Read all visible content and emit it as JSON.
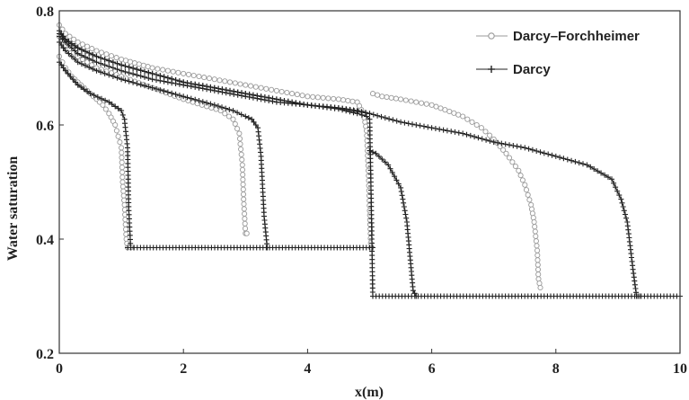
{
  "chart_data": {
    "type": "line",
    "title": "",
    "xlabel": "x(m)",
    "ylabel": "Water saturation",
    "xlim": [
      0,
      10
    ],
    "ylim": [
      0.2,
      0.8
    ],
    "xticks": [
      "0",
      "2",
      "4",
      "6",
      "8",
      "10"
    ],
    "yticks": [
      "0.2",
      "0.4",
      "0.6",
      "0.8"
    ],
    "xtick_values": [
      0,
      2,
      4,
      6,
      8,
      10
    ],
    "ytick_values": [
      0.2,
      0.4,
      0.6,
      0.8
    ],
    "grid": false,
    "legend_position": "top-right",
    "legend": [
      {
        "label": "Darcy–Forchheimer",
        "marker": "circle",
        "color": "#9a9a9a"
      },
      {
        "label": "Darcy",
        "marker": "plus",
        "color": "#222222"
      }
    ],
    "series": [
      {
        "legend_index": 0,
        "marker": "circle",
        "color": "#9a9a9a",
        "curves": [
          {
            "x": [
              0.0,
              0.05,
              0.1,
              0.2,
              0.3,
              0.4,
              0.5,
              0.6,
              0.7,
              0.8,
              0.9,
              0.95,
              1.0,
              1.02,
              1.05,
              1.08,
              1.1,
              1.15
            ],
            "y": [
              0.72,
              0.71,
              0.7,
              0.685,
              0.675,
              0.665,
              0.655,
              0.645,
              0.635,
              0.62,
              0.6,
              0.58,
              0.56,
              0.5,
              0.46,
              0.4,
              0.385,
              0.385
            ]
          },
          {
            "x": [
              0.0,
              0.1,
              0.3,
              0.6,
              1.0,
              1.5,
              2.0,
              2.3,
              2.6,
              2.8,
              2.9,
              2.95,
              2.97,
              3.0,
              3.02
            ],
            "y": [
              0.755,
              0.74,
              0.72,
              0.7,
              0.685,
              0.665,
              0.645,
              0.635,
              0.625,
              0.61,
              0.585,
              0.53,
              0.47,
              0.41,
              0.41
            ]
          },
          {
            "x": [
              0.0,
              0.1,
              0.3,
              0.6,
              1.0,
              1.5,
              2.0,
              2.5,
              3.0,
              3.5,
              4.0,
              4.5,
              4.8,
              4.9,
              4.95,
              4.98,
              5.0,
              5.02
            ],
            "y": [
              0.775,
              0.76,
              0.745,
              0.73,
              0.715,
              0.7,
              0.69,
              0.68,
              0.67,
              0.66,
              0.65,
              0.645,
              0.64,
              0.62,
              0.59,
              0.52,
              0.45,
              0.385
            ]
          },
          {
            "x": [
              5.05,
              5.2,
              5.5,
              6.0,
              6.5,
              6.8,
              7.0,
              7.2,
              7.4,
              7.5,
              7.6,
              7.65,
              7.7,
              7.72,
              7.75
            ],
            "y": [
              0.655,
              0.65,
              0.645,
              0.635,
              0.615,
              0.595,
              0.575,
              0.55,
              0.52,
              0.495,
              0.46,
              0.43,
              0.38,
              0.33,
              0.315
            ]
          }
        ]
      },
      {
        "legend_index": 1,
        "marker": "plus",
        "color": "#222222",
        "curves": [
          {
            "x": [
              0.0,
              0.1,
              0.3,
              0.5,
              0.8,
              1.0,
              1.05,
              1.1,
              1.12,
              1.15,
              1.2
            ],
            "y": [
              0.71,
              0.695,
              0.67,
              0.655,
              0.64,
              0.625,
              0.61,
              0.56,
              0.45,
              0.385,
              0.385
            ]
          },
          {
            "x": [
              0.0,
              0.1,
              0.3,
              0.6,
              1.0,
              1.5,
              2.0,
              2.5,
              2.8,
              3.0,
              3.1,
              3.2,
              3.25,
              3.3,
              3.35
            ],
            "y": [
              0.745,
              0.73,
              0.71,
              0.695,
              0.68,
              0.665,
              0.65,
              0.635,
              0.625,
              0.615,
              0.61,
              0.595,
              0.545,
              0.44,
              0.385
            ]
          },
          {
            "x": [
              0.0,
              0.1,
              0.3,
              0.6,
              1.0,
              1.5,
              2.0,
              2.5,
              3.0,
              3.5,
              4.0,
              4.5,
              4.8,
              4.95,
              5.0,
              5.02,
              5.05
            ],
            "y": [
              0.755,
              0.745,
              0.725,
              0.71,
              0.695,
              0.68,
              0.67,
              0.66,
              0.65,
              0.64,
              0.635,
              0.628,
              0.62,
              0.615,
              0.61,
              0.5,
              0.3
            ]
          },
          {
            "x": [
              0.0,
              0.1,
              0.3,
              0.6,
              1.0,
              1.5,
              2.0,
              2.5,
              3.0,
              3.5,
              4.0,
              4.5,
              4.8,
              5.0
            ],
            "y": [
              0.76,
              0.75,
              0.735,
              0.72,
              0.705,
              0.69,
              0.675,
              0.665,
              0.655,
              0.645,
              0.635,
              0.63,
              0.625,
              0.62
            ]
          },
          {
            "x": [
              5.0,
              5.1,
              5.3,
              5.5,
              5.6,
              5.65,
              5.7,
              5.75
            ],
            "y": [
              0.555,
              0.55,
              0.53,
              0.49,
              0.43,
              0.37,
              0.31,
              0.3
            ]
          },
          {
            "x": [
              0.0,
              0.1,
              0.3,
              0.6,
              1.0,
              1.5,
              2.0,
              2.5,
              3.0,
              3.5,
              4.0,
              4.5,
              5.0,
              5.5,
              6.0,
              6.5,
              7.0,
              7.5,
              8.0,
              8.5,
              8.9,
              9.05,
              9.15,
              9.25,
              9.3,
              9.35
            ],
            "y": [
              0.765,
              0.75,
              0.735,
              0.72,
              0.705,
              0.69,
              0.675,
              0.665,
              0.655,
              0.645,
              0.635,
              0.63,
              0.62,
              0.605,
              0.595,
              0.585,
              0.57,
              0.56,
              0.545,
              0.53,
              0.505,
              0.47,
              0.43,
              0.34,
              0.3,
              0.3
            ]
          }
        ]
      }
    ],
    "plateaus": [
      {
        "marker": "plus",
        "color": "#222222",
        "x": [
          1.1,
          5.05
        ],
        "y": 0.385
      },
      {
        "marker": "plus",
        "color": "#222222",
        "x": [
          5.05,
          10.0
        ],
        "y": 0.3
      }
    ]
  }
}
